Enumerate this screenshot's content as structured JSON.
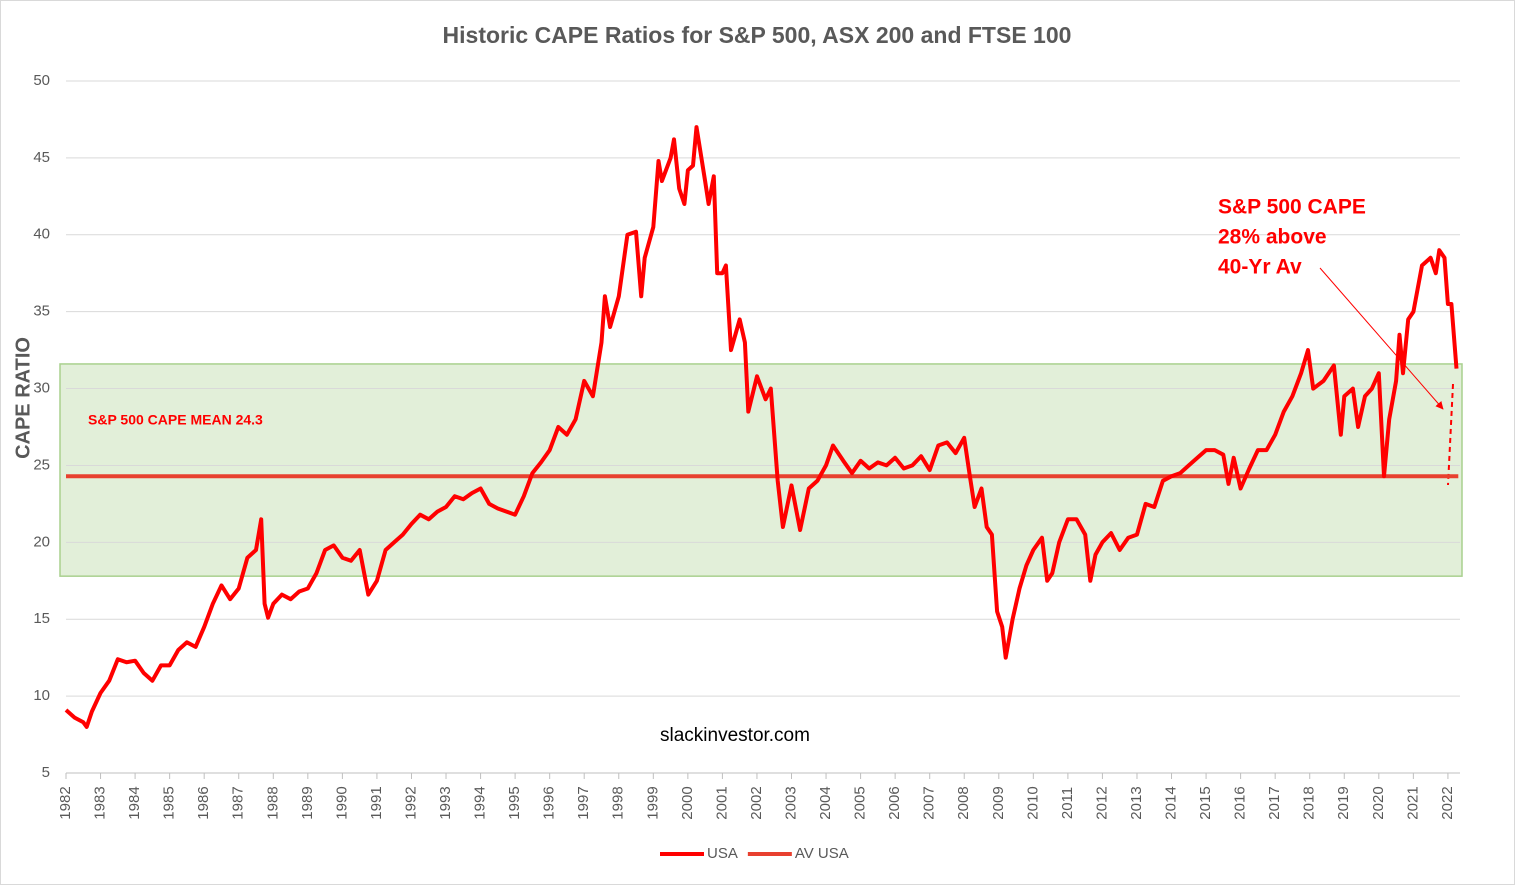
{
  "chart_data": {
    "type": "line",
    "title": "Historic CAPE Ratios for S&P 500, ASX 200 and FTSE 100",
    "y_label": "CAPE RATIO",
    "annotations": [
      "S&P 500 CAPE MEAN 24.3",
      "S&P 500 CAPE",
      "28% above",
      "40-Yr Av",
      "slackinvestor.com"
    ],
    "xlim": [
      1982,
      2022.35
    ],
    "xticks": [
      1982,
      1983,
      1984,
      1985,
      1986,
      1987,
      1988,
      1989,
      1990,
      1991,
      1992,
      1993,
      1994,
      1995,
      1996,
      1997,
      1998,
      1999,
      2000,
      2001,
      2002,
      2003,
      2004,
      2005,
      2006,
      2007,
      2008,
      2009,
      2010,
      2011,
      2012,
      2013,
      2014,
      2015,
      2016,
      2017,
      2018,
      2019,
      2020,
      2021,
      2022
    ],
    "ylim": [
      5,
      50
    ],
    "yticks": [
      5,
      10,
      15,
      20,
      25,
      30,
      35,
      40,
      45,
      50
    ],
    "grid": true,
    "band": [
      17.8,
      31.6
    ],
    "band_color": "#e2efd9",
    "legend": "bottom",
    "series": [
      {
        "name": "USA",
        "color": "#ff0000",
        "x": [
          1982.0,
          1982.25,
          1982.5,
          1982.6,
          1982.75,
          1983.0,
          1983.25,
          1983.5,
          1983.75,
          1984.0,
          1984.25,
          1984.5,
          1984.75,
          1985.0,
          1985.25,
          1985.5,
          1985.75,
          1986.0,
          1986.25,
          1986.5,
          1986.75,
          1987.0,
          1987.25,
          1987.5,
          1987.65,
          1987.75,
          1987.85,
          1988.0,
          1988.25,
          1988.5,
          1988.75,
          1989.0,
          1989.25,
          1989.5,
          1989.75,
          1990.0,
          1990.25,
          1990.5,
          1990.75,
          1991.0,
          1991.25,
          1991.5,
          1991.75,
          1992.0,
          1992.25,
          1992.5,
          1992.75,
          1993.0,
          1993.25,
          1993.5,
          1993.75,
          1994.0,
          1994.25,
          1994.5,
          1994.75,
          1995.0,
          1995.25,
          1995.5,
          1995.75,
          1996.0,
          1996.25,
          1996.5,
          1996.75,
          1997.0,
          1997.25,
          1997.5,
          1997.6,
          1997.75,
          1998.0,
          1998.25,
          1998.5,
          1998.65,
          1998.75,
          1999.0,
          1999.15,
          1999.25,
          1999.5,
          1999.6,
          1999.75,
          1999.9,
          2000.0,
          2000.15,
          2000.25,
          2000.5,
          2000.6,
          2000.75,
          2000.85,
          2001.0,
          2001.1,
          2001.25,
          2001.5,
          2001.65,
          2001.75,
          2002.0,
          2002.25,
          2002.4,
          2002.6,
          2002.75,
          2003.0,
          2003.25,
          2003.5,
          2003.75,
          2004.0,
          2004.2,
          2004.5,
          2004.75,
          2005.0,
          2005.25,
          2005.5,
          2005.75,
          2006.0,
          2006.25,
          2006.5,
          2006.75,
          2007.0,
          2007.25,
          2007.5,
          2007.75,
          2008.0,
          2008.15,
          2008.3,
          2008.5,
          2008.65,
          2008.8,
          2008.95,
          2009.1,
          2009.2,
          2009.4,
          2009.6,
          2009.8,
          2010.0,
          2010.25,
          2010.4,
          2010.55,
          2010.75,
          2011.0,
          2011.25,
          2011.5,
          2011.65,
          2011.8,
          2012.0,
          2012.25,
          2012.5,
          2012.75,
          2013.0,
          2013.25,
          2013.5,
          2013.75,
          2014.0,
          2014.25,
          2014.5,
          2014.75,
          2015.0,
          2015.25,
          2015.5,
          2015.65,
          2015.8,
          2016.0,
          2016.25,
          2016.5,
          2016.75,
          2017.0,
          2017.25,
          2017.5,
          2017.75,
          2017.95,
          2018.1,
          2018.4,
          2018.7,
          2018.9,
          2019.0,
          2019.25,
          2019.4,
          2019.6,
          2019.8,
          2020.0,
          2020.15,
          2020.3,
          2020.5,
          2020.6,
          2020.7,
          2020.85,
          2021.0,
          2021.25,
          2021.5,
          2021.65,
          2021.75,
          2021.9,
          2022.0,
          2022.1,
          2022.25
        ],
        "values": [
          9.1,
          8.6,
          8.3,
          8.0,
          9.0,
          10.2,
          11.0,
          12.4,
          12.2,
          12.3,
          11.5,
          11.0,
          12.0,
          12.0,
          13.0,
          13.5,
          13.2,
          14.5,
          16.0,
          17.2,
          16.3,
          17.0,
          19.0,
          19.5,
          21.5,
          16.0,
          15.1,
          16.0,
          16.6,
          16.3,
          16.8,
          17.0,
          18.0,
          19.5,
          19.8,
          19.0,
          18.8,
          19.5,
          16.6,
          17.5,
          19.5,
          20.0,
          20.5,
          21.2,
          21.8,
          21.5,
          22.0,
          22.3,
          23.0,
          22.8,
          23.2,
          23.5,
          22.5,
          22.2,
          22.0,
          21.8,
          23.0,
          24.5,
          25.2,
          26.0,
          27.5,
          27.0,
          28.0,
          30.5,
          29.5,
          33.0,
          36.0,
          34.0,
          36.0,
          40.0,
          40.2,
          36.0,
          38.5,
          40.5,
          44.8,
          43.5,
          45.0,
          46.2,
          43.0,
          42.0,
          44.2,
          44.5,
          47.0,
          43.5,
          42.0,
          43.8,
          37.5,
          37.5,
          38.0,
          32.5,
          34.5,
          33.0,
          28.5,
          30.8,
          29.3,
          30.0,
          24.0,
          21.0,
          23.7,
          20.8,
          23.5,
          24.0,
          25.0,
          26.3,
          25.3,
          24.5,
          25.3,
          24.8,
          25.2,
          25.0,
          25.5,
          24.8,
          25.0,
          25.6,
          24.7,
          26.3,
          26.5,
          25.8,
          26.8,
          24.5,
          22.3,
          23.5,
          21.0,
          20.5,
          15.5,
          14.5,
          12.5,
          15.0,
          17.0,
          18.5,
          19.5,
          20.3,
          17.5,
          18.0,
          20.0,
          21.5,
          21.5,
          20.5,
          17.5,
          19.2,
          20.0,
          20.6,
          19.5,
          20.3,
          20.5,
          22.5,
          22.3,
          24.0,
          24.3,
          24.5,
          25.0,
          25.5,
          26.0,
          26.0,
          25.7,
          23.8,
          25.5,
          23.5,
          24.8,
          26.0,
          26.0,
          27.0,
          28.5,
          29.5,
          31.0,
          32.5,
          30.0,
          30.5,
          31.5,
          27.0,
          29.5,
          30.0,
          27.5,
          29.5,
          30.0,
          31.0,
          24.3,
          28.0,
          30.5,
          33.5,
          31.0,
          34.5,
          35.0,
          38.0,
          38.5,
          37.5,
          39.0,
          38.5,
          35.5,
          35.5,
          31.3
        ]
      },
      {
        "name": "AV USA",
        "color": "#e8402f",
        "x": [
          1982,
          2022.3
        ],
        "values": [
          24.3,
          24.3
        ]
      }
    ]
  }
}
